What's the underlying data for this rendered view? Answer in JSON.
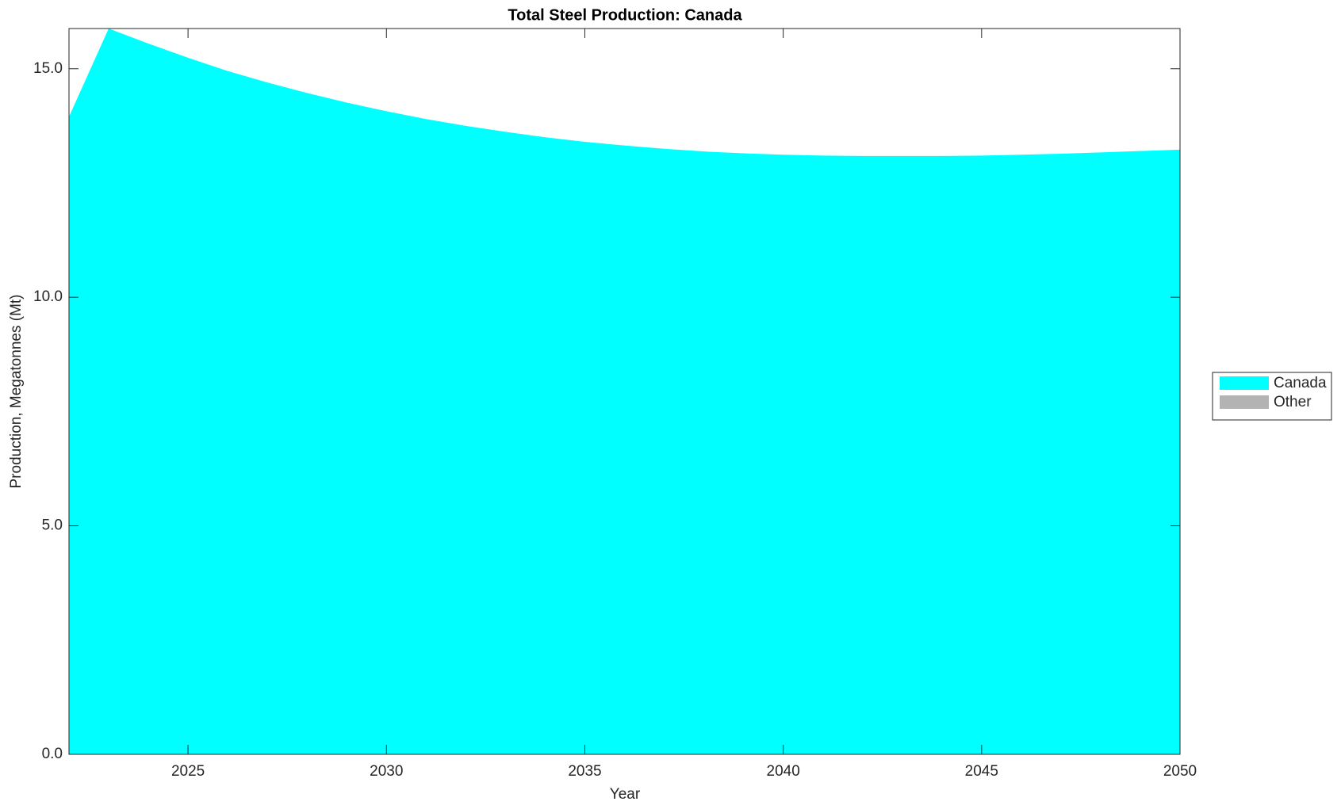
{
  "chart_data": {
    "type": "stacked_area",
    "title": "Total Steel Production: Canada",
    "x_label": "Year",
    "y_label": "Production, Megatonnes (Mt)",
    "x": [
      2022,
      2023,
      2024,
      2025,
      2026,
      2027,
      2028,
      2029,
      2030,
      2031,
      2032,
      2033,
      2034,
      2035,
      2036,
      2037,
      2038,
      2039,
      2040,
      2041,
      2042,
      2043,
      2044,
      2045,
      2046,
      2047,
      2048,
      2049,
      2050
    ],
    "series": [
      {
        "name": "Canada",
        "color": "#00ffff",
        "values": [
          13.95,
          15.88,
          15.55,
          15.24,
          14.95,
          14.7,
          14.47,
          14.26,
          14.07,
          13.9,
          13.75,
          13.62,
          13.5,
          13.4,
          13.32,
          13.25,
          13.19,
          13.15,
          13.12,
          13.1,
          13.09,
          13.09,
          13.09,
          13.1,
          13.12,
          13.14,
          13.17,
          13.2,
          13.23
        ]
      },
      {
        "name": "Other",
        "color": "#b3b3b3",
        "values": [
          0,
          0,
          0,
          0,
          0,
          0,
          0,
          0,
          0,
          0,
          0,
          0,
          0,
          0,
          0,
          0,
          0,
          0,
          0,
          0,
          0,
          0,
          0,
          0,
          0,
          0,
          0,
          0,
          0
        ]
      }
    ],
    "xlim": [
      2022,
      2050
    ],
    "xticks": [
      2025,
      2030,
      2035,
      2040,
      2045,
      2050
    ],
    "ylim": [
      0,
      15.88
    ],
    "yticks": [
      {
        "value": 0,
        "label": "0.0"
      },
      {
        "value": 5,
        "label": "5.0"
      },
      {
        "value": 10,
        "label": "10.0"
      },
      {
        "value": 15,
        "label": "15.0"
      }
    ],
    "grid": false,
    "legend_position": "right"
  }
}
